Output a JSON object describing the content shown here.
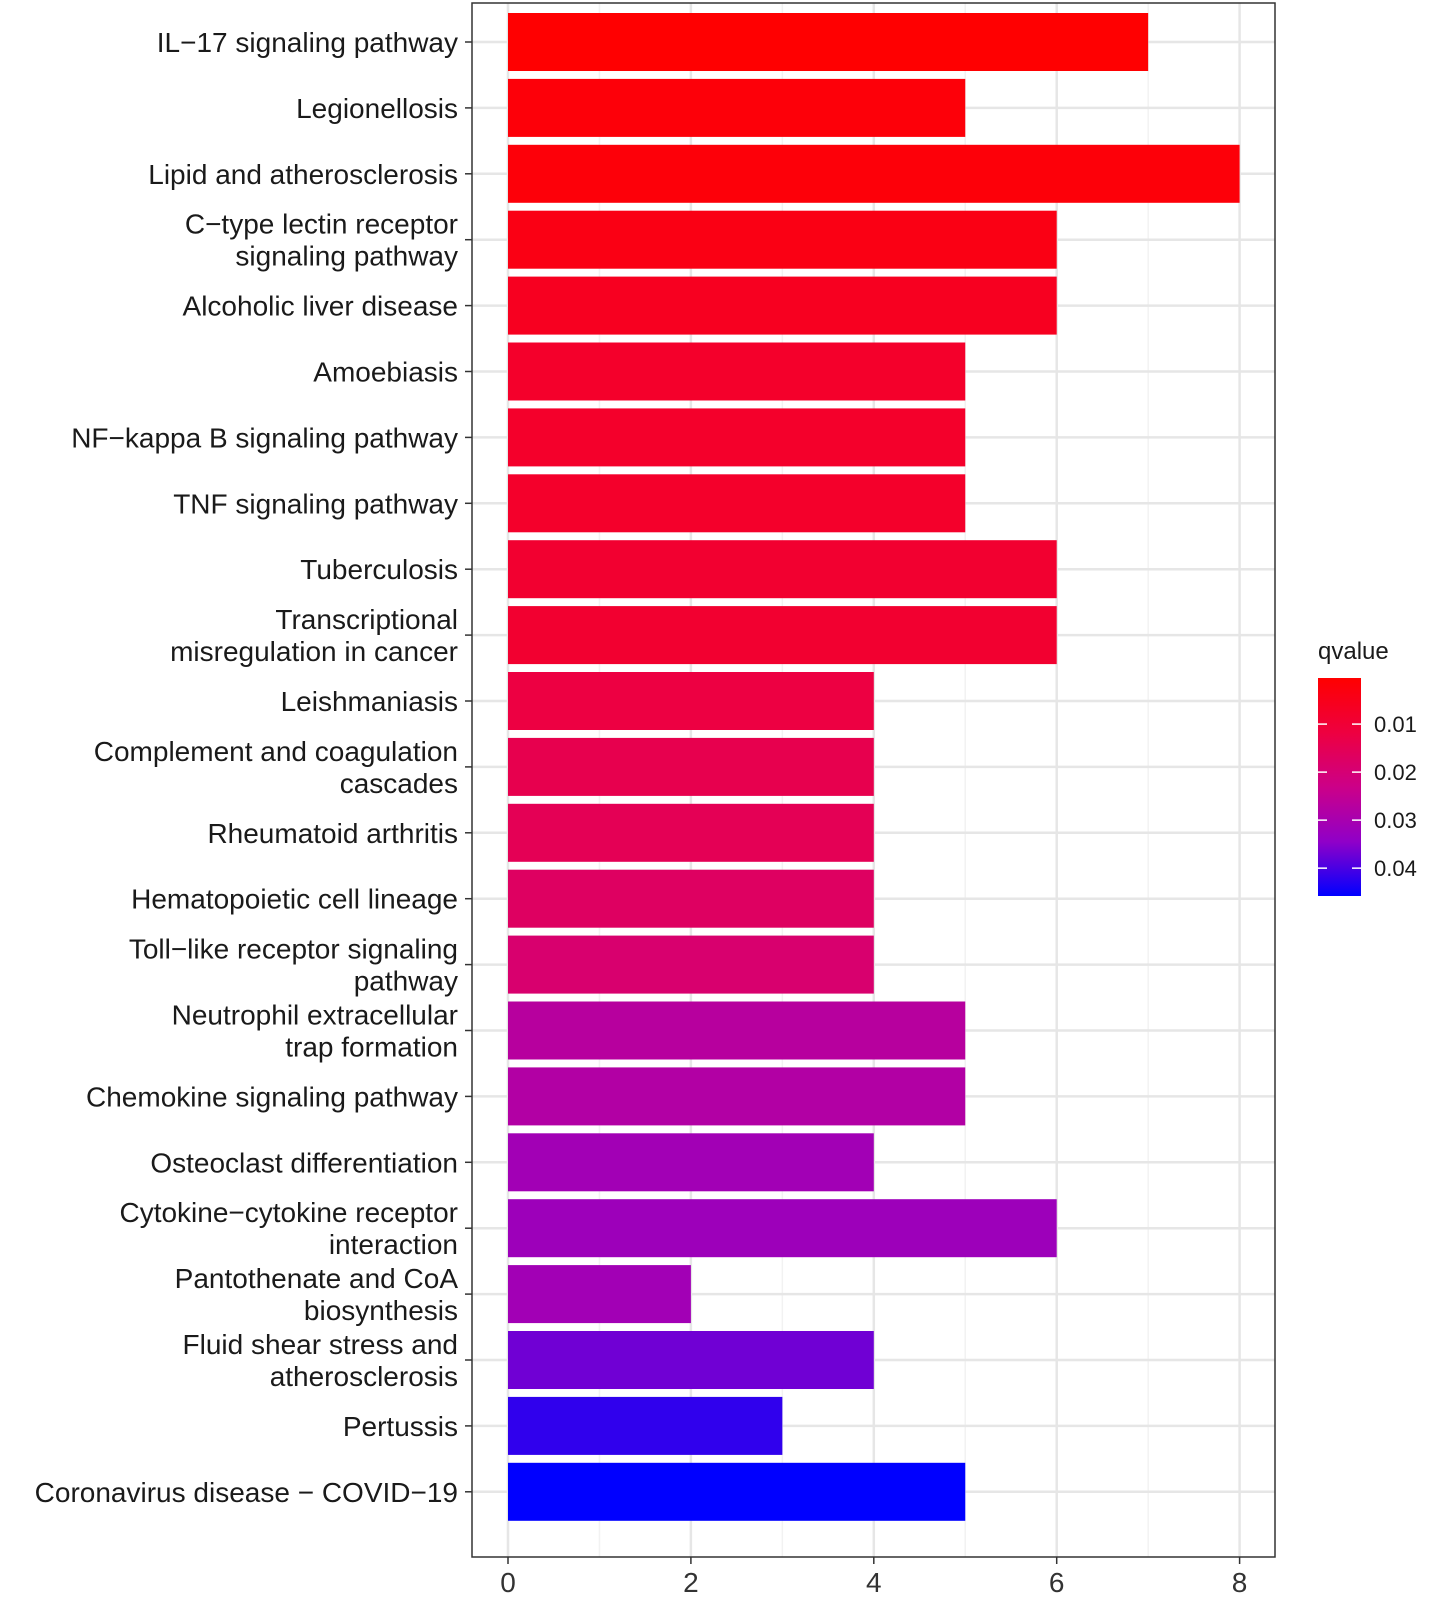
{
  "chart_data": {
    "type": "bar",
    "orientation": "horizontal",
    "title": "",
    "xlabel": "",
    "ylabel": "",
    "xlim": [
      0,
      8
    ],
    "xticks": [
      "0",
      "2",
      "4",
      "6",
      "8"
    ],
    "grid": true,
    "categories": [
      "IL−17 signaling pathway",
      "Legionellosis",
      "Lipid and atherosclerosis",
      "C−type lectin receptor\nsignaling pathway",
      "Alcoholic liver disease",
      "Amoebiasis",
      "NF−kappa B signaling pathway",
      "TNF signaling pathway",
      "Tuberculosis",
      "Transcriptional\nmisregulation in cancer",
      "Leishmaniasis",
      "Complement and coagulation\ncascades",
      "Rheumatoid arthritis",
      "Hematopoietic cell lineage",
      "Toll−like receptor signaling\npathway",
      "Neutrophil extracellular\ntrap formation",
      "Chemokine signaling pathway",
      "Osteoclast differentiation",
      "Cytokine−cytokine receptor\ninteraction",
      "Pantothenate and CoA\nbiosynthesis",
      "Fluid shear stress and\natherosclerosis",
      "Pertussis",
      "Coronavirus disease − COVID−19"
    ],
    "values": [
      7,
      5,
      8,
      6,
      6,
      5,
      5,
      5,
      6,
      6,
      4,
      4,
      4,
      4,
      4,
      5,
      5,
      4,
      6,
      2,
      4,
      3,
      5
    ],
    "qvalues": [
      0.0005,
      0.002,
      0.002,
      0.004,
      0.006,
      0.008,
      0.008,
      0.008,
      0.009,
      0.009,
      0.012,
      0.014,
      0.015,
      0.017,
      0.019,
      0.027,
      0.028,
      0.031,
      0.032,
      0.031,
      0.037,
      0.042,
      0.0458
    ],
    "legend": {
      "title": "qvalue",
      "position": "right",
      "range": [
        0.0004,
        0.0458
      ],
      "ticks": [
        "0.01",
        "0.02",
        "0.03",
        "0.04"
      ],
      "tick_values": [
        0.01,
        0.02,
        0.03,
        0.04
      ],
      "low_color": "#FF0000",
      "high_color": "#0000FF"
    }
  }
}
